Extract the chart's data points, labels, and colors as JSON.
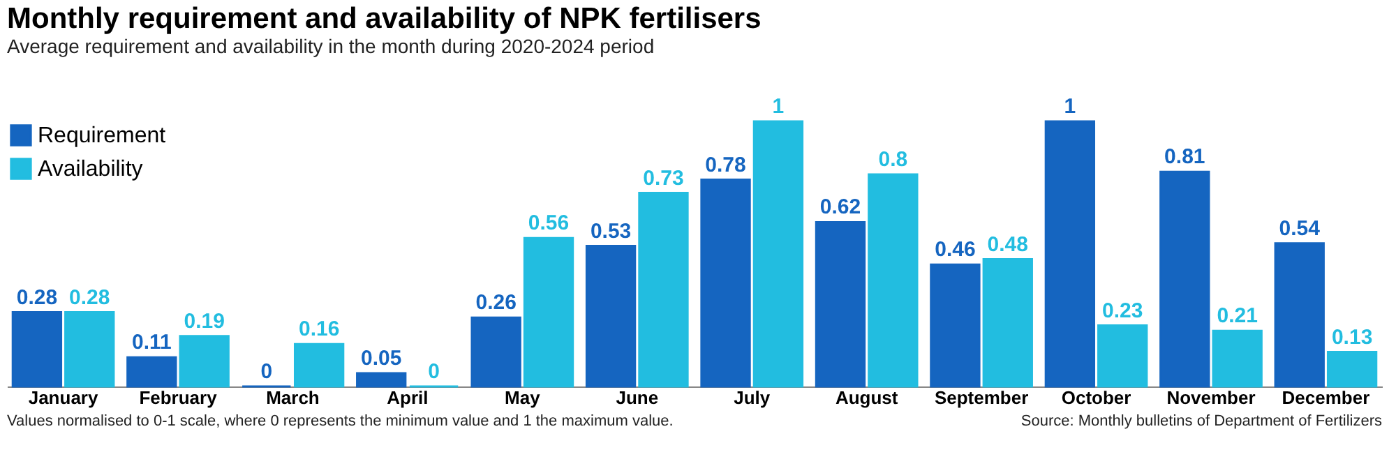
{
  "chart_data": {
    "type": "bar",
    "title": "Monthly requirement and availability of NPK fertilisers",
    "subtitle": "Average requirement and availability in the month during 2020-2024 period",
    "categories": [
      "January",
      "February",
      "March",
      "April",
      "May",
      "June",
      "July",
      "August",
      "September",
      "October",
      "November",
      "December"
    ],
    "data_labels": true,
    "legend": "top left",
    "series": [
      {
        "name": "Requirement",
        "color": "#1565c0",
        "values": [
          0.28,
          0.11,
          0,
          0.05,
          0.26,
          0.53,
          0.78,
          0.62,
          0.46,
          1,
          0.81,
          0.54
        ]
      },
      {
        "name": "Availability",
        "color": "#22bde0",
        "values": [
          0.28,
          0.19,
          0.16,
          0,
          0.56,
          0.73,
          1,
          0.8,
          0.48,
          0.23,
          0.21,
          0.13
        ]
      }
    ],
    "annotations": [
      "Values normalised to 0-1 scale, where 0 represents the minimum value and 1 the maximum value.",
      "Source: Monthly bulletins of Department of Fertilizers"
    ]
  }
}
